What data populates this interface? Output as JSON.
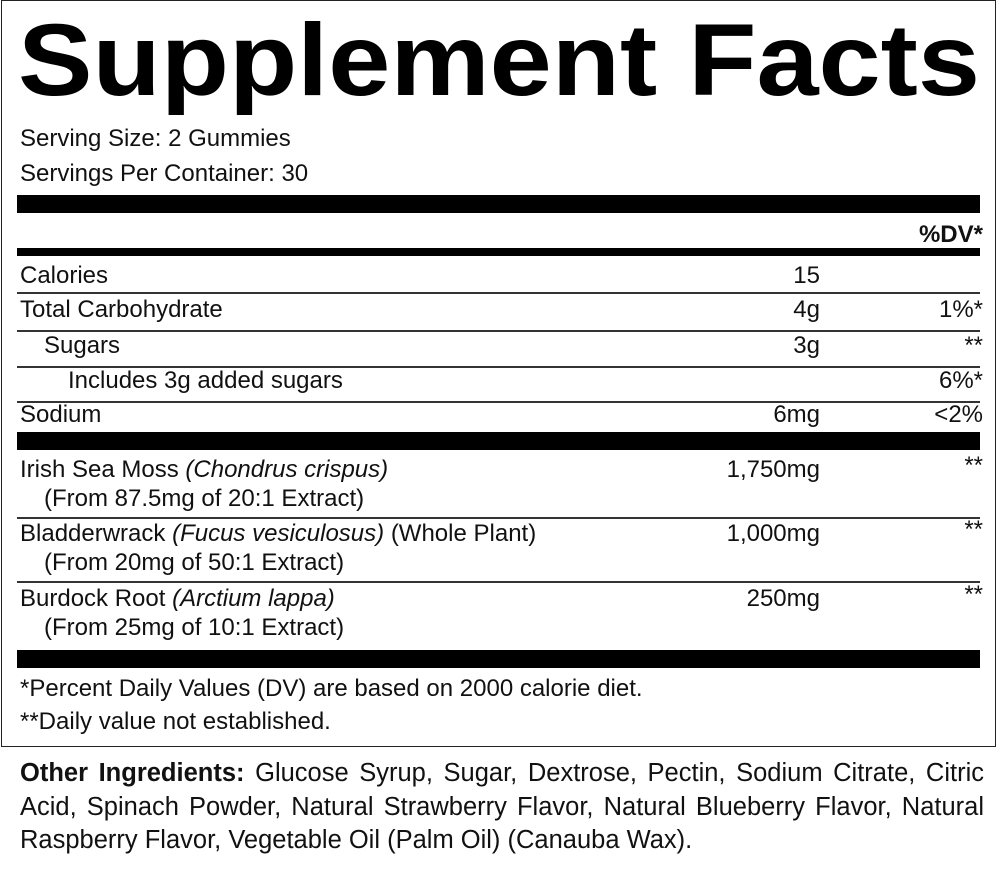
{
  "title": "Supplement Facts",
  "serving_size": "Serving Size: 2 Gummies",
  "servings_per_container": "Servings Per Container: 30",
  "dv_header": "%DV*",
  "nutrients": [
    {
      "name": "Calories",
      "amount": "15",
      "dv": null
    },
    {
      "name": "Total Carbohydrate",
      "amount": "4g",
      "dv": "1%*"
    },
    {
      "name": "Sugars",
      "amount": "3g",
      "dv": "**"
    },
    {
      "name": "Includes 3g added sugars",
      "amount": null,
      "dv": "6%*"
    },
    {
      "name": "Sodium",
      "amount": "6mg",
      "dv": "<2%"
    }
  ],
  "botanicals": [
    {
      "name": "Irish Sea Moss",
      "latin": "(Chondrus crispus)",
      "part": null,
      "detail": "(From 87.5mg of 20:1 Extract)",
      "amount": "1,750mg",
      "dv": "**"
    },
    {
      "name": "Bladderwrack",
      "latin": "(Fucus vesiculosus)",
      "part": "(Whole Plant)",
      "detail": "(From 20mg of 50:1 Extract)",
      "amount": "1,000mg",
      "dv": "**"
    },
    {
      "name": "Burdock Root",
      "latin": "(Arctium lappa)",
      "part": null,
      "detail": "(From 25mg of 10:1 Extract)",
      "amount": "250mg",
      "dv": "**"
    }
  ],
  "footnotes": [
    "*Percent Daily Values (DV) are based on 2000 calorie diet.",
    "**Daily value not established."
  ],
  "other_ingredients": {
    "label": "Other Ingredients:",
    "text": "Glucose Syrup, Sugar, Dextrose, Pectin, Sodium Citrate, Citric Acid, Spinach Powder, Natural Strawberry Flavor, Natural Blueberry Flavor, Natural Raspberry Flavor, Vegetable Oil (Palm Oil) (Canauba Wax)."
  }
}
